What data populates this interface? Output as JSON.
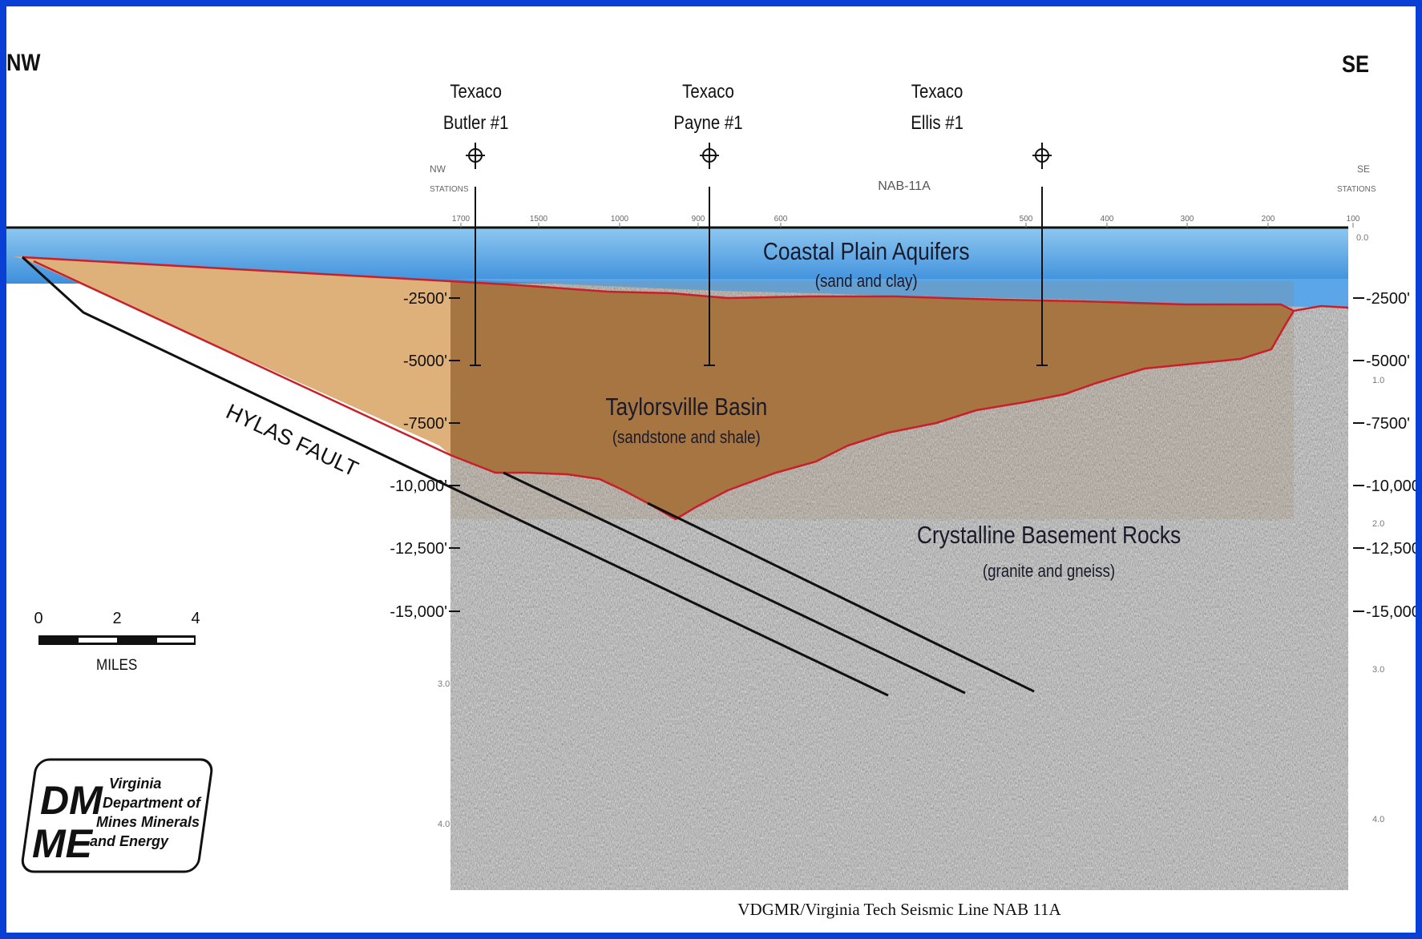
{
  "directions": {
    "left": "NW",
    "right": "SE"
  },
  "wells": [
    {
      "operator": "Texaco",
      "name": "Butler #1"
    },
    {
      "operator": "Texaco",
      "name": "Payne #1"
    },
    {
      "operator": "Texaco",
      "name": "Ellis #1"
    }
  ],
  "seismic": {
    "line_label": "NAB-11A",
    "left_end": "NW",
    "right_end": "SE",
    "stations_word": "STATIONS",
    "station_ticks": [
      "1700",
      "1500",
      "1000",
      "900",
      "600",
      "500",
      "400",
      "300",
      "200",
      "100"
    ],
    "time_ticks": [
      "1.0",
      "2.0",
      "3.0",
      "4.0"
    ],
    "top_time": "0.0"
  },
  "units": {
    "coastal": {
      "name": "Coastal Plain Aquifers",
      "desc": "(sand and clay)"
    },
    "basin": {
      "name": "Taylorsville Basin",
      "desc": "(sandstone and shale)"
    },
    "basement": {
      "name": "Crystalline Basement Rocks",
      "desc": "(granite and gneiss)"
    }
  },
  "fault_label": "HYLAS FAULT",
  "depth_labels": [
    "-2500'",
    "-5000'",
    "-7500'",
    "-10,000'",
    "-12,500'",
    "-15,000'"
  ],
  "scale": {
    "ticks": [
      "0",
      "2",
      "4"
    ],
    "unit": "MILES"
  },
  "logo": {
    "initials": "DMME",
    "lines": [
      "Virginia",
      "Department of",
      "Mines Minerals",
      "and Energy"
    ]
  },
  "caption": "VDGMR/Virginia Tech Seismic Line NAB 11A",
  "colors": {
    "frame": "#0a3fd6",
    "water": "#5aa6e8",
    "basin": "#a8743f",
    "wedge": "#deb07a",
    "boundary": "#c8202a",
    "basement": "#9a9a9a"
  }
}
